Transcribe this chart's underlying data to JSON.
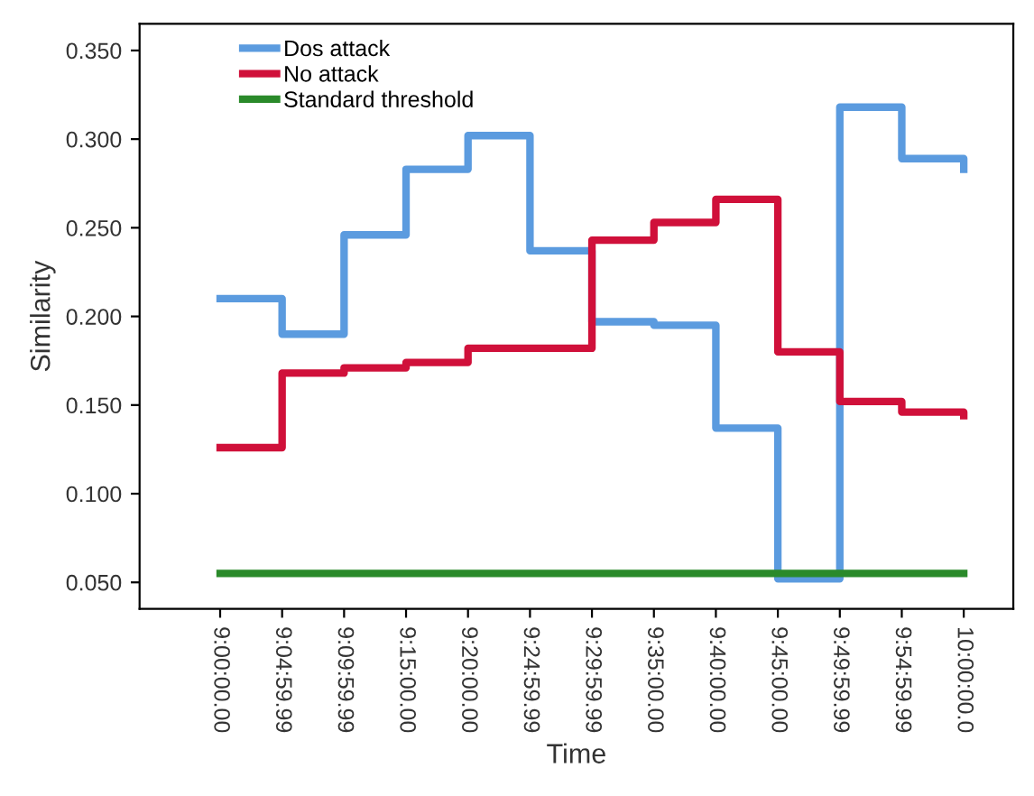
{
  "chart_data": {
    "type": "step",
    "xlabel": "Time",
    "ylabel": "Similarity",
    "categories": [
      "9:00:00.00",
      "9:04:59.99",
      "9:09:59.99",
      "9:15:00.00",
      "9:20:00.00",
      "9:24:59.99",
      "9:29:59.99",
      "9:35:00.00",
      "9:40:00.00",
      "9:45:00.00",
      "9:49:59.99",
      "9:54:59.99",
      "10:00:00.0"
    ],
    "series": [
      {
        "name": "Dos attack",
        "color": "#5b9bdf",
        "values": [
          0.21,
          0.19,
          0.246,
          0.283,
          0.302,
          0.237,
          0.197,
          0.195,
          0.137,
          0.052,
          0.318,
          0.289,
          0.283
        ]
      },
      {
        "name": "No attack",
        "color": "#d0103a",
        "values": [
          0.126,
          0.168,
          0.171,
          0.174,
          0.182,
          0.182,
          0.243,
          0.253,
          0.266,
          0.18,
          0.152,
          0.146,
          0.144
        ]
      },
      {
        "name": "Standard threshold",
        "color": "#2a8a2a",
        "values": [
          0.055,
          0.055,
          0.055,
          0.055,
          0.055,
          0.055,
          0.055,
          0.055,
          0.055,
          0.055,
          0.055,
          0.055,
          0.055
        ]
      }
    ],
    "ylim": [
      0.035,
      0.365
    ],
    "yticks": [
      {
        "value": 0.05,
        "label": "0.050"
      },
      {
        "value": 0.1,
        "label": "0.100"
      },
      {
        "value": 0.15,
        "label": "0.150"
      },
      {
        "value": 0.2,
        "label": "0.200"
      },
      {
        "value": 0.25,
        "label": "0.250"
      },
      {
        "value": 0.3,
        "label": "0.300"
      },
      {
        "value": 0.35,
        "label": "0.350"
      }
    ],
    "legend": "top left",
    "grid": false
  }
}
